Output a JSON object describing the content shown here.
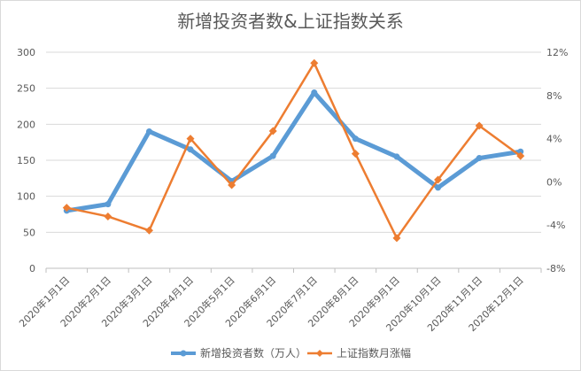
{
  "chart_data": {
    "type": "line",
    "title": "新增投资者数&上证指数关系",
    "categories": [
      "2020年1月1日",
      "2020年2月1日",
      "2020年3月1日",
      "2020年4月1日",
      "2020年5月1日",
      "2020年6月1日",
      "2020年7月1日",
      "2020年8月1日",
      "2020年9月1日",
      "2020年10月1日",
      "2020年11月1日",
      "2020年12月1日"
    ],
    "y_left": {
      "min": 0,
      "max": 300,
      "ticks": [
        0,
        50,
        100,
        150,
        200,
        250,
        300
      ],
      "tick_labels": [
        "0",
        "50",
        "100",
        "150",
        "200",
        "250",
        "300"
      ]
    },
    "y_right": {
      "min": -8,
      "max": 12,
      "ticks": [
        -8,
        -4,
        0,
        4,
        8,
        12
      ],
      "tick_labels": [
        "-8%",
        "-4%",
        "0%",
        "4%",
        "8%",
        "12%"
      ]
    },
    "series": [
      {
        "name": "新增投资者数（万人）",
        "axis": "left",
        "color": "#5b9bd5",
        "marker": "circle",
        "values": [
          80,
          89,
          190,
          165,
          121,
          156,
          244,
          180,
          155,
          112,
          153,
          162
        ]
      },
      {
        "name": "上证指数月涨幅",
        "axis": "right",
        "color": "#ed7d31",
        "marker": "diamond",
        "values": [
          -2.4,
          -3.2,
          -4.5,
          4.0,
          -0.3,
          4.7,
          11.0,
          2.6,
          -5.2,
          0.2,
          5.2,
          2.4
        ]
      }
    ],
    "grid": true,
    "legend_position": "bottom"
  }
}
